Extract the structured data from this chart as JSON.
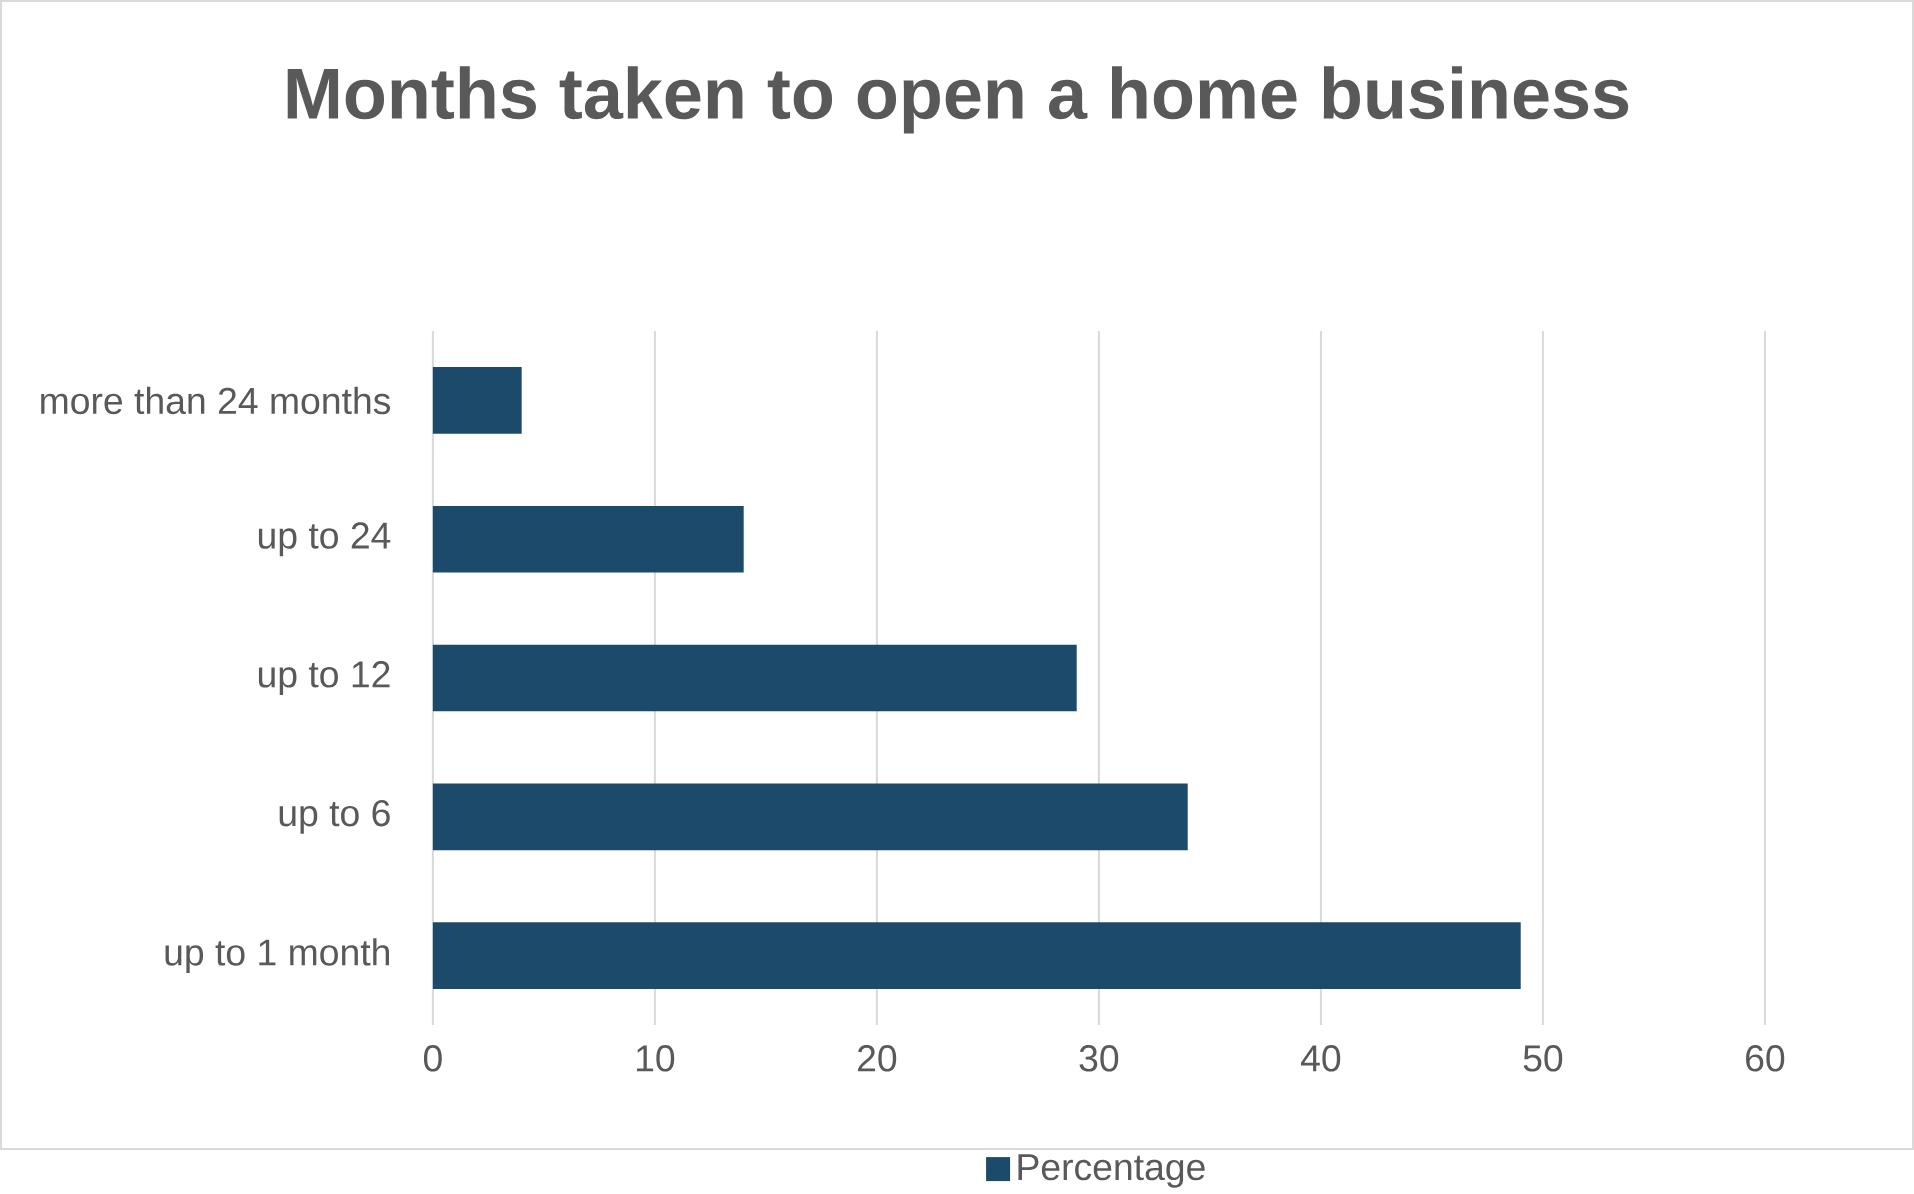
{
  "chart_data": {
    "type": "bar",
    "orientation": "horizontal",
    "title": "Months taken to open a home business",
    "categories": [
      "more than 24 months",
      "up to 24",
      "up to 12",
      "up to 6",
      "up to 1 month"
    ],
    "series": [
      {
        "name": "Percentage",
        "color": "#1b4a6b",
        "values": [
          4,
          14,
          29,
          34,
          49
        ]
      }
    ],
    "xlim": [
      0,
      60
    ],
    "xticks": [
      0,
      10,
      20,
      30,
      40,
      50,
      60
    ],
    "grid": "x",
    "legend": "bottom"
  }
}
